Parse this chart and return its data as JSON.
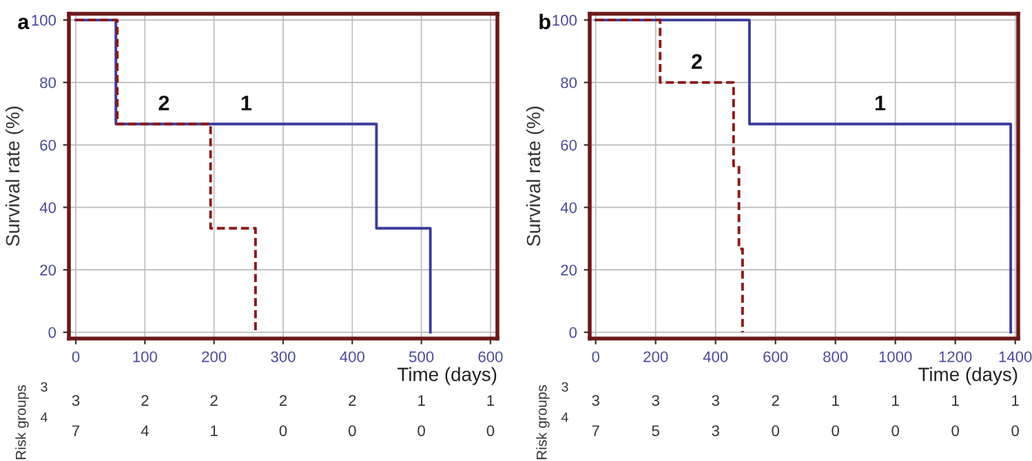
{
  "chart_data": [
    {
      "type": "step",
      "title": "a",
      "xlabel": "Time (days)",
      "ylabel": "Survival rate (%)",
      "xlim": [
        -10,
        610
      ],
      "xticks": [
        0,
        100,
        200,
        300,
        400,
        500,
        600
      ],
      "ylim": [
        -2,
        102
      ],
      "yticks": [
        0,
        20,
        40,
        60,
        80,
        100
      ],
      "grid": true,
      "legend": false,
      "series": [
        {
          "name": "1",
          "color": "#3c3c9c",
          "line_style": "solid",
          "x": [
            0,
            58,
            435,
            513
          ],
          "values": [
            100,
            66.7,
            33.3,
            0
          ]
        },
        {
          "name": "2",
          "color": "#8b1a1a",
          "line_style": "dashed",
          "x": [
            0,
            60,
            195,
            260
          ],
          "values": [
            100,
            66.7,
            33.3,
            0
          ]
        }
      ],
      "annotations": [
        "Risk groups",
        "3",
        "3",
        "2",
        "2",
        "2",
        "2",
        "1",
        "1",
        "4",
        "7",
        "4",
        "1",
        "0",
        "0",
        "0",
        "0"
      ]
    },
    {
      "type": "step",
      "title": "b",
      "xlabel": "Time (days)",
      "ylabel": "Survival rate (%)",
      "xlim": [
        -20,
        1410
      ],
      "xticks": [
        0,
        200,
        400,
        600,
        800,
        1000,
        1200,
        1400
      ],
      "ylim": [
        -2,
        102
      ],
      "yticks": [
        0,
        20,
        40,
        60,
        80,
        100
      ],
      "grid": true,
      "legend": false,
      "series": [
        {
          "name": "1",
          "color": "#3c3c9c",
          "line_style": "solid",
          "x": [
            0,
            513,
            1385
          ],
          "values": [
            100,
            66.7,
            0
          ]
        },
        {
          "name": "2",
          "color": "#8b1a1a",
          "line_style": "dashed",
          "x": [
            0,
            215,
            460,
            478,
            490
          ],
          "values": [
            100,
            80,
            53.3,
            26.7,
            0
          ]
        }
      ],
      "annotations": [
        "Risk groups",
        "3",
        "3",
        "3",
        "3",
        "2",
        "1",
        "1",
        "1",
        "1",
        "4",
        "7",
        "5",
        "3",
        "0",
        "0",
        "0",
        "0",
        "0"
      ]
    }
  ]
}
